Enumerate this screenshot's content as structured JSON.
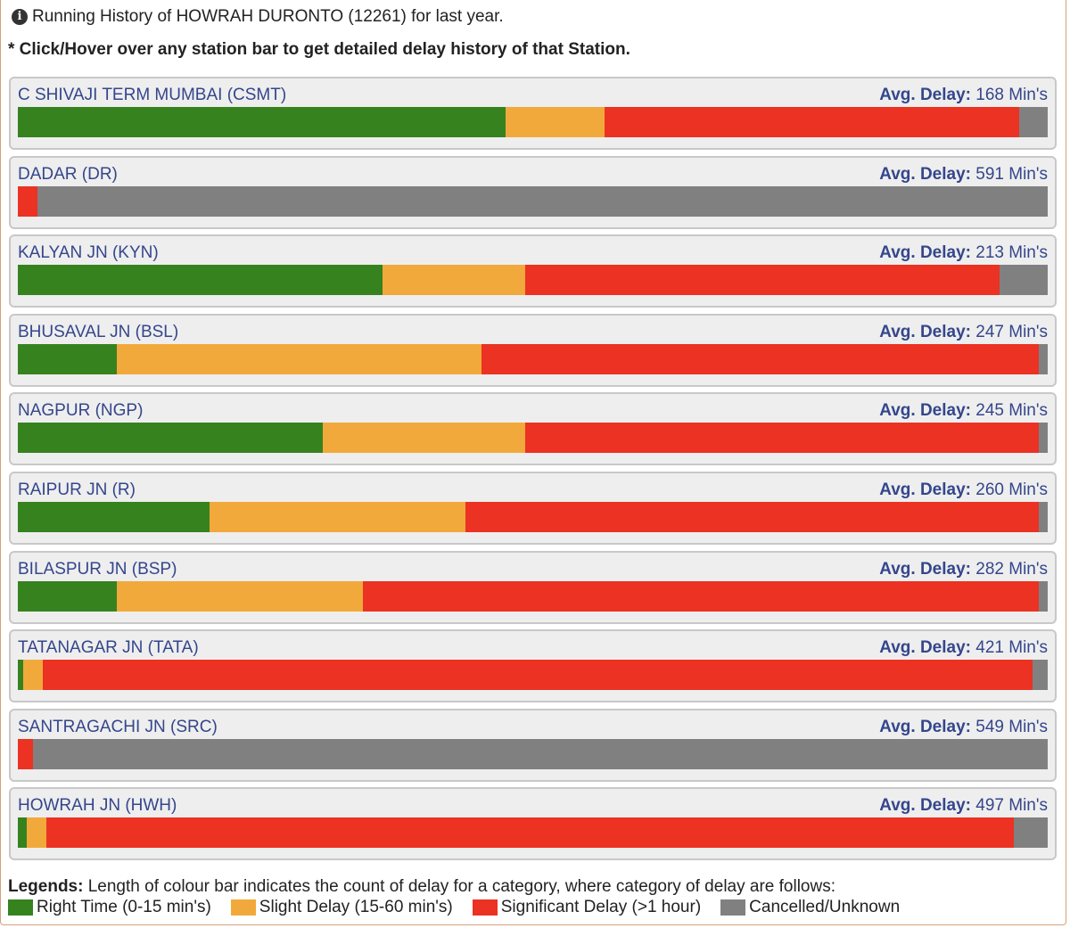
{
  "header": {
    "info_text": "Running History of HOWRAH DURONTO (12261) for last year.",
    "hint_text": "* Click/Hover over any station bar to get detailed delay history of that Station."
  },
  "avg_delay_label": "Avg. Delay:",
  "colors": {
    "right_time": "#36821f",
    "slight_delay": "#f2a93b",
    "significant_delay": "#eb3223",
    "cancelled": "#808080"
  },
  "legend": {
    "title": "Legends:",
    "description": "Length of colour bar indicates the count of delay for a category, where category of delay are follows:",
    "items": [
      {
        "label": "Right Time (0-15 min's)",
        "color_key": "right_time"
      },
      {
        "label": "Slight Delay (15-60 min's)",
        "color_key": "slight_delay"
      },
      {
        "label": "Significant Delay (>1 hour)",
        "color_key": "significant_delay"
      },
      {
        "label": "Cancelled/Unknown",
        "color_key": "cancelled"
      }
    ]
  },
  "chart_data": {
    "type": "bar",
    "stacked": true,
    "orientation": "horizontal",
    "units": "percent of runs",
    "series_keys": [
      "right_time",
      "slight_delay",
      "significant_delay",
      "cancelled"
    ],
    "categories": [
      "C SHIVAJI TERM MUMBAI (CSMT)",
      "DADAR (DR)",
      "KALYAN JN (KYN)",
      "BHUSAVAL JN (BSL)",
      "NAGPUR (NGP)",
      "RAIPUR JN (R)",
      "BILASPUR JN (BSP)",
      "TATANAGAR JN (TATA)",
      "SANTRAGACHI JN (SRC)",
      "HOWRAH JN (HWH)"
    ],
    "stations": [
      {
        "name": "C SHIVAJI TERM MUMBAI (CSMT)",
        "avg_delay": "168 Min's",
        "values": [
          47.4,
          9.6,
          40.2,
          2.8
        ]
      },
      {
        "name": "DADAR (DR)",
        "avg_delay": "591 Min's",
        "values": [
          0,
          0,
          1.9,
          98.1
        ]
      },
      {
        "name": "KALYAN JN (KYN)",
        "avg_delay": "213 Min's",
        "values": [
          35.4,
          13.9,
          46.0,
          4.7
        ]
      },
      {
        "name": "BHUSAVAL JN (BSL)",
        "avg_delay": "247 Min's",
        "values": [
          9.6,
          35.4,
          54.1,
          0.9
        ]
      },
      {
        "name": "NAGPUR (NGP)",
        "avg_delay": "245 Min's",
        "values": [
          29.6,
          19.7,
          49.8,
          0.9
        ]
      },
      {
        "name": "RAIPUR JN (R)",
        "avg_delay": "260 Min's",
        "values": [
          18.6,
          24.9,
          55.6,
          0.9
        ]
      },
      {
        "name": "BILASPUR JN (BSP)",
        "avg_delay": "282 Min's",
        "values": [
          9.6,
          23.9,
          65.6,
          0.9
        ]
      },
      {
        "name": "TATANAGAR JN (TATA)",
        "avg_delay": "421 Min's",
        "values": [
          0.5,
          1.9,
          96.1,
          1.5
        ]
      },
      {
        "name": "SANTRAGACHI JN (SRC)",
        "avg_delay": "549 Min's",
        "values": [
          0,
          0,
          1.5,
          98.5
        ]
      },
      {
        "name": "HOWRAH JN (HWH)",
        "avg_delay": "497 Min's",
        "values": [
          0.9,
          1.9,
          93.9,
          3.3
        ]
      }
    ]
  }
}
